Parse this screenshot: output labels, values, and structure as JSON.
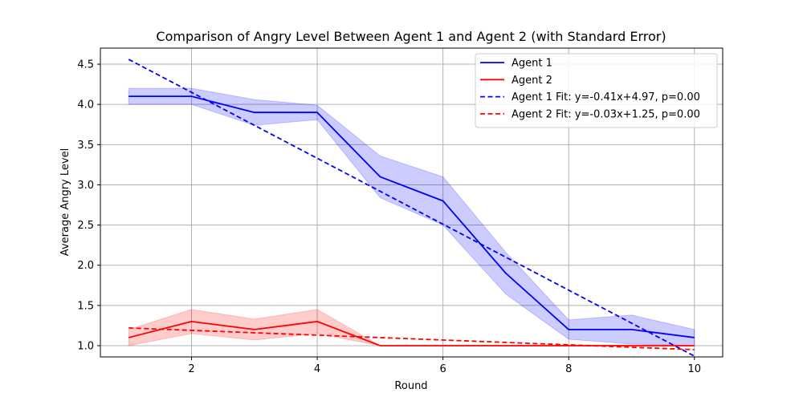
{
  "chart_data": {
    "type": "line",
    "title": "Comparison of Angry Level Between Agent 1 and Agent 2 (with Standard Error)",
    "xlabel": "Round",
    "ylabel": "Average Angry Level",
    "xlim": [
      0.55,
      10.45
    ],
    "ylim": [
      0.86,
      4.7
    ],
    "x_ticks": [
      2,
      4,
      6,
      8,
      10
    ],
    "x_tick_labels": [
      "2",
      "4",
      "6",
      "8",
      "10"
    ],
    "y_ticks": [
      1.0,
      1.5,
      2.0,
      2.5,
      3.0,
      3.5,
      4.0,
      4.5
    ],
    "y_tick_labels": [
      "1.0",
      "1.5",
      "2.0",
      "2.5",
      "3.0",
      "3.5",
      "4.0",
      "4.5"
    ],
    "grid": true,
    "legend_position": "top-right",
    "x": [
      1,
      2,
      3,
      4,
      5,
      6,
      7,
      8,
      9,
      10
    ],
    "series": [
      {
        "name": "Agent 1",
        "kind": "line",
        "color": "#0000ff",
        "values": [
          4.1,
          4.1,
          3.9,
          3.9,
          3.1,
          2.8,
          1.9,
          1.2,
          1.2,
          1.1
        ],
        "stderr": [
          0.1,
          0.1,
          0.16,
          0.09,
          0.26,
          0.3,
          0.26,
          0.12,
          0.18,
          0.1
        ]
      },
      {
        "name": "Agent 2",
        "kind": "line",
        "color": "#ff0000",
        "values": [
          1.1,
          1.3,
          1.2,
          1.3,
          1.0,
          1.0,
          1.0,
          1.0,
          1.0,
          1.0
        ],
        "stderr": [
          0.1,
          0.15,
          0.13,
          0.15,
          0.0,
          0.0,
          0.0,
          0.0,
          0.0,
          0.0
        ]
      },
      {
        "name": "Agent 1 Fit: y=-0.41x+4.97, p=0.00",
        "kind": "fit",
        "color": "#0000ff",
        "slope": -0.41,
        "intercept": 4.97
      },
      {
        "name": "Agent 2 Fit: y=-0.03x+1.25, p=0.00",
        "kind": "fit",
        "color": "#ff0000",
        "slope": -0.03,
        "intercept": 1.25
      }
    ]
  }
}
